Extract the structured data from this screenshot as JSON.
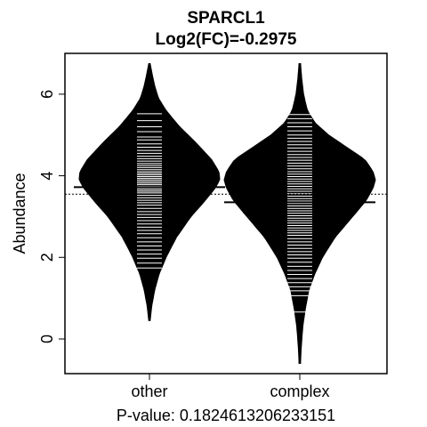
{
  "chart_data": {
    "type": "beanplot",
    "title": "SPARCL1",
    "subtitle": "Log2(FC)=-0.2975",
    "xlabel": "P-value: 0.1824613206233151",
    "ylabel": "Abundance",
    "categories": [
      "other",
      "complex"
    ],
    "ylim": [
      -0.85,
      7.0
    ],
    "yticks": [
      0,
      2,
      4,
      6
    ],
    "overall_mean": 3.55,
    "group_means": [
      3.72,
      3.35
    ],
    "density": [
      {
        "group": "other",
        "range": [
          0.45,
          6.75
        ],
        "profile": [
          [
            0.45,
            0.01
          ],
          [
            0.8,
            0.03
          ],
          [
            1.2,
            0.07
          ],
          [
            1.6,
            0.13
          ],
          [
            2.0,
            0.22
          ],
          [
            2.5,
            0.36
          ],
          [
            3.0,
            0.55
          ],
          [
            3.4,
            0.74
          ],
          [
            3.7,
            0.87
          ],
          [
            3.9,
            0.93
          ],
          [
            4.1,
            0.92
          ],
          [
            4.4,
            0.82
          ],
          [
            4.8,
            0.62
          ],
          [
            5.2,
            0.4
          ],
          [
            5.6,
            0.22
          ],
          [
            5.9,
            0.12
          ],
          [
            6.2,
            0.07
          ],
          [
            6.5,
            0.035
          ],
          [
            6.75,
            0.01
          ]
        ],
        "width_peak": 0.45
      },
      {
        "group": "complex",
        "range": [
          -0.6,
          6.75
        ],
        "profile": [
          [
            -0.6,
            0.01
          ],
          [
            -0.2,
            0.02
          ],
          [
            0.3,
            0.04
          ],
          [
            0.7,
            0.07
          ],
          [
            1.2,
            0.12
          ],
          [
            1.6,
            0.2
          ],
          [
            2.0,
            0.3
          ],
          [
            2.5,
            0.47
          ],
          [
            3.0,
            0.7
          ],
          [
            3.4,
            0.88
          ],
          [
            3.7,
            0.97
          ],
          [
            3.9,
            1.0
          ],
          [
            4.1,
            0.97
          ],
          [
            4.4,
            0.86
          ],
          [
            4.7,
            0.62
          ],
          [
            5.0,
            0.38
          ],
          [
            5.3,
            0.2
          ],
          [
            5.6,
            0.1
          ],
          [
            6.0,
            0.05
          ],
          [
            6.4,
            0.025
          ],
          [
            6.75,
            0.01
          ]
        ],
        "width_peak": 0.5
      }
    ],
    "points": [
      {
        "group": "other",
        "values": [
          5.52,
          5.35,
          5.2,
          5.08,
          4.95,
          4.88,
          4.78,
          4.7,
          4.62,
          4.55,
          4.48,
          4.42,
          4.36,
          4.3,
          4.25,
          4.2,
          4.15,
          4.1,
          4.06,
          4.02,
          3.98,
          3.94,
          3.9,
          3.86,
          3.82,
          3.78,
          3.74,
          3.7,
          3.66,
          3.62,
          3.58,
          3.52,
          3.46,
          3.4,
          3.34,
          3.28,
          3.2,
          3.12,
          3.05,
          2.98,
          2.9,
          2.82,
          2.74,
          2.66,
          2.58,
          2.48,
          2.38,
          2.28,
          2.18,
          2.08,
          1.98,
          1.86,
          1.74
        ]
      },
      {
        "group": "complex",
        "values": [
          5.5,
          5.4,
          5.3,
          5.2,
          5.1,
          5.0,
          4.92,
          4.84,
          4.76,
          4.68,
          4.6,
          4.52,
          4.45,
          4.38,
          4.31,
          4.24,
          4.17,
          4.1,
          4.04,
          3.98,
          3.92,
          3.86,
          3.8,
          3.74,
          3.68,
          3.62,
          3.56,
          3.5,
          3.44,
          3.38,
          3.32,
          3.26,
          3.2,
          3.14,
          3.08,
          3.02,
          2.96,
          2.9,
          2.84,
          2.78,
          2.72,
          2.66,
          2.6,
          2.54,
          2.46,
          2.38,
          2.3,
          2.22,
          2.14,
          2.06,
          1.98,
          1.88,
          1.78,
          1.68,
          1.58,
          1.48,
          1.38,
          1.28,
          1.18,
          1.06,
          0.66
        ]
      }
    ],
    "colors": {
      "bean": "#000000",
      "point_line": "#ffffff",
      "mean_line": "#000000",
      "background": "#ffffff"
    }
  }
}
